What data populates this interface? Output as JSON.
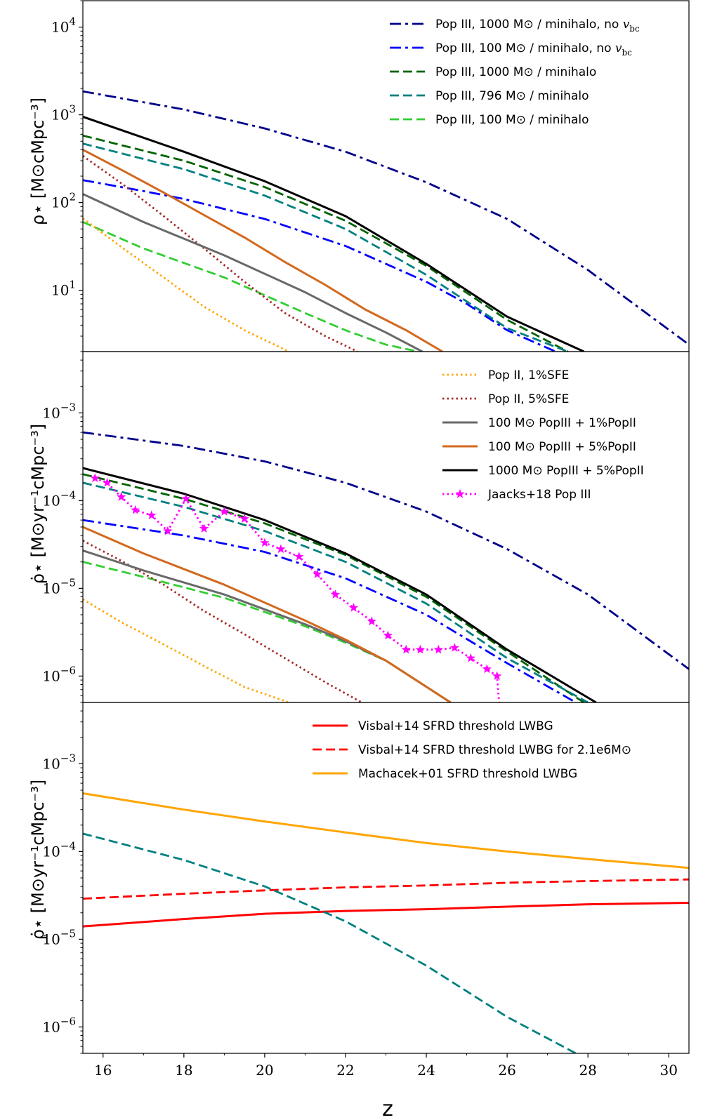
{
  "figure": {
    "xlabel": "z",
    "x_ticks": [
      {
        "value": 16,
        "label": "16"
      },
      {
        "value": 18,
        "label": "18"
      },
      {
        "value": 20,
        "label": "20"
      },
      {
        "value": 22,
        "label": "22"
      },
      {
        "value": 24,
        "label": "24"
      },
      {
        "value": 26,
        "label": "26"
      },
      {
        "value": 28,
        "label": "28"
      },
      {
        "value": 30,
        "label": "30"
      }
    ],
    "xlim": [
      15.5,
      30.5
    ]
  },
  "chart_data": [
    {
      "type": "line",
      "panel": "top",
      "ylabel": "ρ⋆ [M⊙cMpc⁻³]",
      "yscale": "log",
      "ylim": [
        2,
        20000
      ],
      "y_ticks": [
        {
          "value": 10,
          "label": "10^1"
        },
        {
          "value": 100,
          "label": "10^2"
        },
        {
          "value": 1000,
          "label": "10^3"
        },
        {
          "value": 10000,
          "label": "10^4"
        }
      ],
      "series": [
        {
          "name": "Pop III, 1000 M⊙ / minihalo, no v_bc",
          "legend": true,
          "color": "#00008b",
          "style": "dashdot",
          "x": [
            15.5,
            18,
            20,
            22,
            24,
            26,
            28,
            30.5
          ],
          "y": [
            1850,
            1150,
            700,
            380,
            170,
            65,
            17,
            2.4
          ]
        },
        {
          "name": "Pop III, 100 M⊙ / minihalo, no v_bc",
          "legend": true,
          "color": "#0000ff",
          "style": "dashdot",
          "x": [
            15.5,
            17,
            18,
            20,
            22,
            24,
            25,
            26,
            27.2
          ],
          "y": [
            180,
            135,
            110,
            65,
            32,
            12.5,
            7,
            3.5,
            2
          ]
        },
        {
          "name": "Pop III, 1000 M⊙ / minihalo",
          "legend": true,
          "color": "#006400",
          "style": "dashed",
          "x": [
            15.5,
            18,
            20,
            22,
            24,
            26,
            27.5
          ],
          "y": [
            580,
            300,
            150,
            62,
            19,
            4.6,
            2
          ]
        },
        {
          "name": "Pop III, 796 M⊙ / minihalo",
          "legend": true,
          "color": "#008080",
          "style": "dashed",
          "x": [
            15.5,
            18,
            20,
            22,
            24,
            26,
            27.5
          ],
          "y": [
            470,
            240,
            120,
            50,
            15,
            3.7,
            2
          ]
        },
        {
          "name": "Pop III, 100 M⊙ / minihalo",
          "legend": true,
          "color": "#32cd32",
          "style": "dashed",
          "x": [
            15.5,
            17,
            19,
            21,
            22,
            23,
            23.8
          ],
          "y": [
            60,
            30,
            14,
            5.5,
            3.5,
            2.4,
            2
          ]
        },
        {
          "name": "Pop II, 1%SFE",
          "legend": false,
          "color": "#ffa500",
          "style": "dotted",
          "x": [
            15.5,
            16.5,
            17.5,
            18.5,
            19.5,
            20.6
          ],
          "y": [
            66,
            30,
            14,
            6.5,
            3.5,
            2
          ]
        },
        {
          "name": "Pop II, 5%SFE",
          "legend": false,
          "color": "#a52a2a",
          "style": "dotted",
          "x": [
            15.5,
            16.5,
            17.5,
            18.5,
            19.5,
            20.5,
            21.5,
            22.3
          ],
          "y": [
            340,
            160,
            70,
            30,
            12.5,
            5.5,
            3,
            2
          ]
        },
        {
          "name": "100 M⊙ PopIII + 1%PopII",
          "legend": false,
          "color": "#696969",
          "style": "solid",
          "x": [
            15.5,
            17,
            19,
            21,
            22,
            23,
            23.9
          ],
          "y": [
            125,
            60,
            25,
            9.5,
            5.5,
            3.3,
            2
          ]
        },
        {
          "name": "100 M⊙ PopIII + 5%PopII",
          "legend": false,
          "color": "#d2691e",
          "style": "solid",
          "x": [
            15.5,
            16.5,
            17.5,
            18.5,
            19.5,
            20.5,
            21.5,
            22.5,
            23.5,
            24.4
          ],
          "y": [
            400,
            230,
            130,
            72,
            40,
            21,
            11.5,
            6,
            3.5,
            2
          ]
        },
        {
          "name": "1000 M⊙ PopIII + 5%PopII",
          "legend": false,
          "color": "#000000",
          "style": "solid",
          "x": [
            15.5,
            18,
            20,
            22,
            24,
            26,
            27.9
          ],
          "y": [
            950,
            380,
            175,
            70,
            20,
            5,
            2
          ]
        }
      ]
    },
    {
      "type": "line",
      "panel": "middle",
      "ylabel": "ρ̇⋆ [M⊙yr⁻¹cMpc⁻³]",
      "yscale": "log",
      "ylim": [
        5e-07,
        0.005
      ],
      "y_ticks": [
        {
          "value": 1e-06,
          "label": "10^-6"
        },
        {
          "value": 1e-05,
          "label": "10^-5"
        },
        {
          "value": 0.0001,
          "label": "10^-4"
        },
        {
          "value": 0.001,
          "label": "10^-3"
        }
      ],
      "series": [
        {
          "name": "Pop III, 1000 M⊙ / minihalo, no v_bc",
          "legend": false,
          "color": "#00008b",
          "style": "dashdot",
          "x": [
            15.5,
            18,
            20,
            22,
            24,
            26,
            28,
            30.5
          ],
          "y": [
            0.0006,
            0.00042,
            0.00028,
            0.00016,
            7.5e-05,
            2.8e-05,
            8.5e-06,
            1.2e-06
          ]
        },
        {
          "name": "Pop III, 100 M⊙ / minihalo, no v_bc",
          "legend": false,
          "color": "#0000ff",
          "style": "dashdot",
          "x": [
            15.5,
            18,
            20,
            22,
            24,
            26,
            27.7
          ],
          "y": [
            6e-05,
            4e-05,
            2.6e-05,
            1.3e-05,
            5e-06,
            1.4e-06,
            5e-07
          ]
        },
        {
          "name": "Pop III, 1000 M⊙ / minihalo",
          "legend": false,
          "color": "#006400",
          "style": "dashed",
          "x": [
            15.5,
            18,
            20,
            22,
            24,
            26,
            27.9
          ],
          "y": [
            0.0002,
            0.000105,
            5.5e-05,
            2.4e-05,
            8e-06,
            1.9e-06,
            5e-07
          ]
        },
        {
          "name": "Pop III, 796 M⊙ / minihalo",
          "legend": false,
          "color": "#008080",
          "style": "dashed",
          "x": [
            15.5,
            18,
            20,
            22,
            24,
            26,
            28
          ],
          "y": [
            0.00016,
            8.5e-05,
            4.5e-05,
            2e-05,
            6.7e-06,
            1.6e-06,
            5e-07
          ]
        },
        {
          "name": "Pop III, 100 M⊙ / minihalo",
          "legend": false,
          "color": "#32cd32",
          "style": "dashed",
          "x": [
            15.5,
            17,
            19,
            21,
            22,
            23,
            24.6
          ],
          "y": [
            2e-05,
            1.35e-05,
            7.8e-06,
            3.7e-06,
            2.4e-06,
            1.5e-06,
            5e-07
          ]
        },
        {
          "name": "Pop II, 1%SFE",
          "legend": true,
          "color": "#ffa500",
          "style": "dotted",
          "x": [
            15.5,
            16.5,
            17.5,
            18.5,
            19.5,
            20.6
          ],
          "y": [
            7.5e-06,
            4e-06,
            2.3e-06,
            1.3e-06,
            7.5e-07,
            5e-07
          ]
        },
        {
          "name": "Pop II, 5%SFE",
          "legend": true,
          "color": "#a52a2a",
          "style": "dotted",
          "x": [
            15.5,
            16.5,
            17.5,
            18.5,
            19.5,
            20.5,
            21.5,
            22.4
          ],
          "y": [
            3.5e-05,
            2e-05,
            1.1e-05,
            5.5e-06,
            3e-06,
            1.6e-06,
            8.5e-07,
            5e-07
          ]
        },
        {
          "name": "100 M⊙ PopIII + 1%PopII",
          "legend": true,
          "color": "#696969",
          "style": "solid",
          "x": [
            15.5,
            17,
            19,
            21,
            22,
            23,
            24.6
          ],
          "y": [
            2.7e-05,
            1.6e-05,
            8.5e-06,
            3.9e-06,
            2.5e-06,
            1.5e-06,
            5e-07
          ]
        },
        {
          "name": "100 M⊙ PopIII + 5%PopII",
          "legend": true,
          "color": "#d2691e",
          "style": "solid",
          "x": [
            15.5,
            17,
            19,
            21,
            22,
            23,
            24.6
          ],
          "y": [
            5e-05,
            2.5e-05,
            1.1e-05,
            4.3e-06,
            2.6e-06,
            1.5e-06,
            5e-07
          ]
        },
        {
          "name": "1000 M⊙ PopIII + 5%PopII",
          "legend": true,
          "color": "#000000",
          "style": "solid",
          "x": [
            15.5,
            18,
            20,
            22,
            24,
            26,
            28.2
          ],
          "y": [
            0.000235,
            0.00012,
            6e-05,
            2.5e-05,
            8.5e-06,
            2e-06,
            5e-07
          ]
        },
        {
          "name": "Jaacks+18 Pop III",
          "legend": true,
          "color": "#ff00ff",
          "style": "dotted-star",
          "x": [
            15.8,
            16.1,
            16.45,
            16.8,
            17.2,
            17.6,
            18.05,
            18.5,
            19.0,
            19.5,
            20.0,
            20.4,
            20.85,
            21.3,
            21.75,
            22.2,
            22.65,
            23.05,
            23.5,
            23.85,
            24.3,
            24.7,
            25.1,
            25.5,
            25.75,
            25.8
          ],
          "y": [
            0.00018,
            0.00016,
            0.00011,
            7.8e-05,
            6.8e-05,
            4.5e-05,
            0.000105,
            4.8e-05,
            7.5e-05,
            6.2e-05,
            3.3e-05,
            2.8e-05,
            2.3e-05,
            1.45e-05,
            8.5e-06,
            6e-06,
            4.2e-06,
            2.9e-06,
            2e-06,
            2e-06,
            2e-06,
            2.1e-06,
            1.6e-06,
            1.2e-06,
            1e-06,
            5e-07
          ]
        }
      ]
    },
    {
      "type": "line",
      "panel": "bottom",
      "ylabel": "ρ̇⋆ [M⊙yr⁻¹cMpc⁻³]",
      "yscale": "log",
      "ylim": [
        5e-07,
        0.005
      ],
      "y_ticks": [
        {
          "value": 1e-06,
          "label": "10^-6"
        },
        {
          "value": 1e-05,
          "label": "10^-5"
        },
        {
          "value": 0.0001,
          "label": "10^-4"
        },
        {
          "value": 0.001,
          "label": "10^-3"
        }
      ],
      "series": [
        {
          "name": "Visbal+14 SFRD threshold LWBG",
          "legend": true,
          "color": "#ff0000",
          "style": "solid",
          "x": [
            15.5,
            18,
            20,
            22,
            24,
            26,
            28,
            30.5
          ],
          "y": [
            1.4e-05,
            1.7e-05,
            1.95e-05,
            2.1e-05,
            2.2e-05,
            2.35e-05,
            2.5e-05,
            2.6e-05
          ]
        },
        {
          "name": "Visbal+14 SFRD threshold LWBG for 2.1e6M⊙",
          "legend": true,
          "color": "#ff0000",
          "style": "dashed",
          "x": [
            15.5,
            18,
            20,
            22,
            24,
            26,
            28,
            30.5
          ],
          "y": [
            2.9e-05,
            3.3e-05,
            3.6e-05,
            3.9e-05,
            4.1e-05,
            4.4e-05,
            4.6e-05,
            4.8e-05
          ]
        },
        {
          "name": "Machacek+01 SFRD threshold LWBG",
          "legend": true,
          "color": "#ffa500",
          "style": "solid",
          "x": [
            15.5,
            18,
            20,
            22,
            24,
            26,
            28,
            30.5
          ],
          "y": [
            0.00046,
            0.0003,
            0.00022,
            0.000165,
            0.000125,
            0.0001,
            8.2e-05,
            6.5e-05
          ]
        },
        {
          "name": "Pop III, 796 M⊙ / minihalo",
          "legend": false,
          "color": "#008080",
          "style": "dashed",
          "x": [
            15.5,
            18,
            20,
            22,
            24,
            26,
            27.7
          ],
          "y": [
            0.00016,
            8e-05,
            4e-05,
            1.6e-05,
            5e-06,
            1.3e-06,
            5e-07
          ]
        }
      ]
    }
  ],
  "legends": [
    {
      "panel": "top",
      "position": "top-right",
      "entries": [
        {
          "label": "Pop III, 1000 M⊙ / minihalo, no ",
          "math": "v",
          "sub": "bc",
          "color": "#00008b",
          "style": "dashdot"
        },
        {
          "label": "Pop III, 100 M⊙ / minihalo, no ",
          "math": "v",
          "sub": "bc",
          "color": "#0000ff",
          "style": "dashdot"
        },
        {
          "label": "Pop III, 1000 M⊙ / minihalo",
          "color": "#006400",
          "style": "dashed"
        },
        {
          "label": "Pop III, 796 M⊙ / minihalo",
          "color": "#008080",
          "style": "dashed"
        },
        {
          "label": "Pop III, 100 M⊙ / minihalo",
          "color": "#32cd32",
          "style": "dashed"
        }
      ]
    },
    {
      "panel": "middle",
      "position": "top-right",
      "entries": [
        {
          "label": "Pop II, 1%SFE",
          "color": "#ffa500",
          "style": "dotted"
        },
        {
          "label": "Pop II, 5%SFE",
          "color": "#a52a2a",
          "style": "dotted"
        },
        {
          "label": "100 M⊙ PopIII + 1%PopII",
          "color": "#696969",
          "style": "solid"
        },
        {
          "label": "100 M⊙ PopIII + 5%PopII",
          "color": "#d2691e",
          "style": "solid"
        },
        {
          "label": "1000 M⊙ PopIII + 5%PopII",
          "color": "#000000",
          "style": "solid"
        },
        {
          "label": "Jaacks+18 Pop III",
          "color": "#ff00ff",
          "style": "dotted-star"
        }
      ]
    },
    {
      "panel": "bottom",
      "position": "top-right",
      "entries": [
        {
          "label": "Visbal+14 SFRD threshold LWBG",
          "color": "#ff0000",
          "style": "solid"
        },
        {
          "label": "Visbal+14 SFRD threshold LWBG for 2.1e6M⊙",
          "color": "#ff0000",
          "style": "dashed"
        },
        {
          "label": "Machacek+01 SFRD threshold LWBG",
          "color": "#ffa500",
          "style": "solid"
        }
      ]
    }
  ]
}
